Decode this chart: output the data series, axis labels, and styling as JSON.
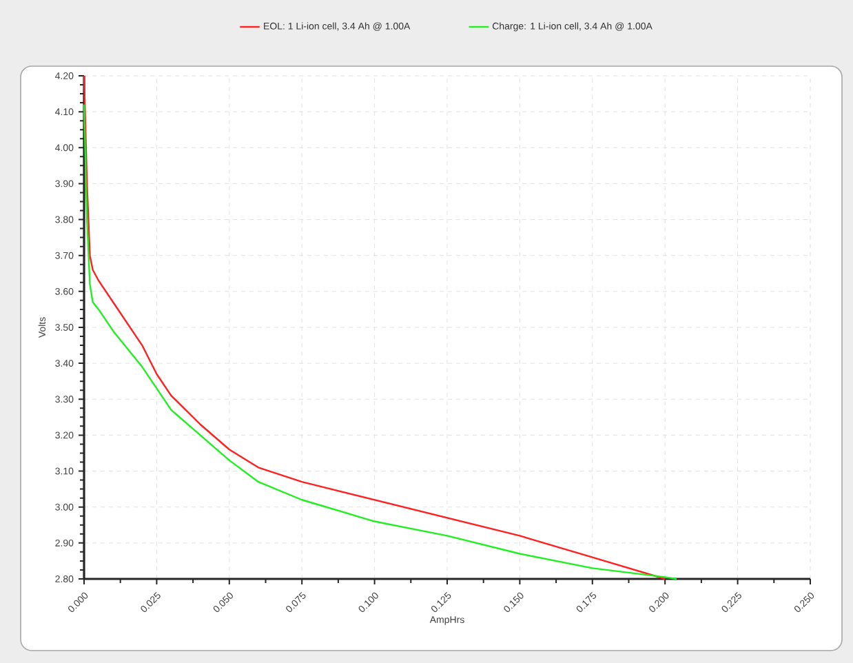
{
  "chart_data": {
    "type": "line",
    "xlabel": "AmpHrs",
    "ylabel": "Volts",
    "xlim": [
      0,
      0.25
    ],
    "ylim": [
      2.8,
      4.2
    ],
    "xticks": [
      {
        "value": 0,
        "label": "0.000"
      },
      {
        "value": 0.025,
        "label": "0.025"
      },
      {
        "value": 0.05,
        "label": "0.050"
      },
      {
        "value": 0.075,
        "label": "0.075"
      },
      {
        "value": 0.1,
        "label": "0.100"
      },
      {
        "value": 0.125,
        "label": "0.125"
      },
      {
        "value": 0.15,
        "label": "0.150"
      },
      {
        "value": 0.175,
        "label": "0.175"
      },
      {
        "value": 0.2,
        "label": "0.200"
      },
      {
        "value": 0.225,
        "label": "0.225"
      },
      {
        "value": 0.25,
        "label": "0.250"
      }
    ],
    "yticks": [
      {
        "value": 2.8,
        "label": "2.80"
      },
      {
        "value": 2.9,
        "label": "2.90"
      },
      {
        "value": 3.0,
        "label": "3.00"
      },
      {
        "value": 3.1,
        "label": "3.10"
      },
      {
        "value": 3.2,
        "label": "3.20"
      },
      {
        "value": 3.3,
        "label": "3.30"
      },
      {
        "value": 3.4,
        "label": "3.40"
      },
      {
        "value": 3.5,
        "label": "3.50"
      },
      {
        "value": 3.6,
        "label": "3.60"
      },
      {
        "value": 3.7,
        "label": "3.70"
      },
      {
        "value": 3.8,
        "label": "3.80"
      },
      {
        "value": 3.9,
        "label": "3.90"
      },
      {
        "value": 4.0,
        "label": "4.00"
      },
      {
        "value": 4.1,
        "label": "4.10"
      },
      {
        "value": 4.2,
        "label": "4.20"
      }
    ],
    "grid": true,
    "legend": "top",
    "marker": "none",
    "line_style": "solid",
    "series": [
      {
        "name": "EOL: 1 Li-ion cell, 3.4 Ah @ 1.00A",
        "color": "#ff2020",
        "x": [
          0,
          0.001,
          0.002,
          0.003,
          0.005,
          0.01,
          0.02,
          0.025,
          0.03,
          0.04,
          0.05,
          0.06,
          0.075,
          0.1,
          0.125,
          0.15,
          0.175,
          0.2
        ],
        "values": [
          4.2,
          3.9,
          3.7,
          3.66,
          3.63,
          3.57,
          3.45,
          3.37,
          3.31,
          3.23,
          3.16,
          3.11,
          3.07,
          3.02,
          2.97,
          2.92,
          2.86,
          2.8
        ]
      },
      {
        "name": "Charge: 1 Li-ion cell, 3.4 Ah @ 1.00A",
        "color": "#20f020",
        "x": [
          0,
          0.001,
          0.002,
          0.003,
          0.005,
          0.01,
          0.02,
          0.025,
          0.03,
          0.04,
          0.05,
          0.06,
          0.075,
          0.1,
          0.125,
          0.15,
          0.175,
          0.2,
          0.204
        ],
        "values": [
          4.12,
          3.8,
          3.62,
          3.57,
          3.55,
          3.49,
          3.39,
          3.33,
          3.27,
          3.2,
          3.13,
          3.07,
          3.02,
          2.96,
          2.92,
          2.87,
          2.83,
          2.805,
          2.8
        ]
      }
    ]
  }
}
